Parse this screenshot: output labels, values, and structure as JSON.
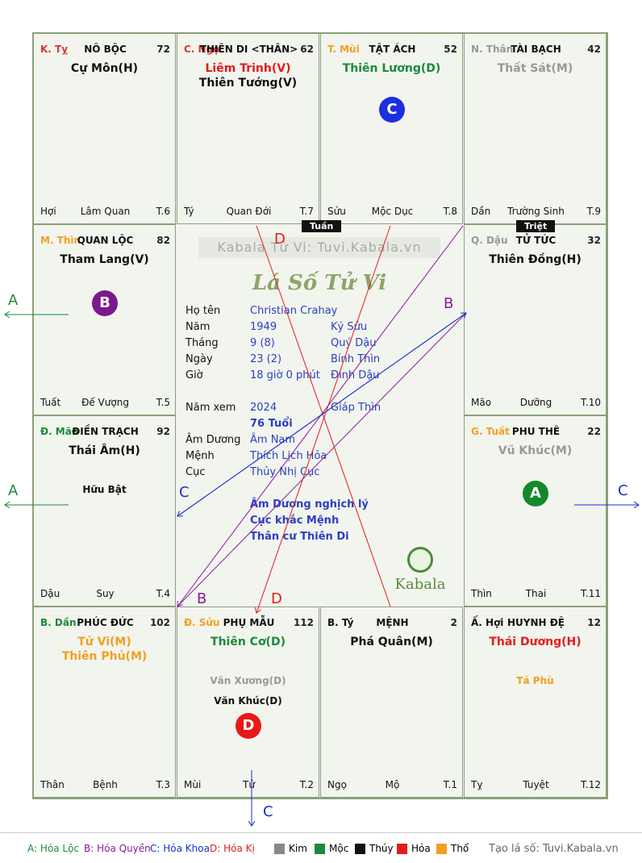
{
  "watermark": "Kabala Tử Vi: Tuvi.Kabala.vn",
  "logo_title": "Lá Số Tử Vi",
  "brand": "Kabala",
  "colors": {
    "kim": "#888888",
    "moc": "#1a8a3a",
    "thuy": "#111111",
    "hoa": "#e11d1d",
    "tho": "#f0a020",
    "blue": "#1a2fd0",
    "purple": "#8a1a9a"
  },
  "cells": [
    {
      "can": "K. Tỵ",
      "can_color": "#d33",
      "name": "NÔ BỘC",
      "num": "72",
      "stars": [
        {
          "t": "Cự Môn(H)",
          "c": "#111"
        }
      ],
      "minor": [],
      "foot": [
        "Hợi",
        "Lâm Quan",
        "T.6"
      ]
    },
    {
      "can": "C. Ngọ",
      "can_color": "#d33",
      "name": "THIÊN DI <THÂN>",
      "num": "62",
      "stars": [
        {
          "t": "Liêm Trinh(V)",
          "c": "#e11d1d"
        },
        {
          "t": "Thiên Tướng(V)",
          "c": "#111"
        }
      ],
      "minor": [],
      "foot": [
        "Tý",
        "Quan Đới",
        "T.7"
      ]
    },
    {
      "can": "T. Mùi",
      "can_color": "#f0a020",
      "name": "TẬT ÁCH",
      "num": "52",
      "stars": [
        {
          "t": "Thiên Lương(D)",
          "c": "#1a8a3a"
        }
      ],
      "minor": [],
      "foot": [
        "Sửu",
        "Mộc Dục",
        "T.8"
      ]
    },
    {
      "can": "N. Thân",
      "can_color": "#999",
      "name": "TÀI BẠCH",
      "num": "42",
      "stars": [
        {
          "t": "Thất Sát(M)",
          "c": "#999"
        }
      ],
      "minor": [],
      "foot": [
        "Dần",
        "Trường Sinh",
        "T.9"
      ]
    },
    {
      "can": "M. Thìn",
      "can_color": "#f0a020",
      "name": "QUAN LỘC",
      "num": "82",
      "stars": [
        {
          "t": "Tham Lang(V)",
          "c": "#111"
        }
      ],
      "minor": [],
      "foot": [
        "Tuất",
        "Đế Vượng",
        "T.5"
      ]
    },
    {
      "can": "Q. Dậu",
      "can_color": "#999",
      "name": "TỬ TỨC",
      "num": "32",
      "stars": [
        {
          "t": "Thiên Đồng(H)",
          "c": "#111"
        }
      ],
      "minor": [],
      "foot": [
        "Mão",
        "Dưỡng",
        "T.10"
      ]
    },
    {
      "can": "Đ. Mão",
      "can_color": "#1a8a3a",
      "name": "ĐIỀN TRẠCH",
      "num": "92",
      "stars": [
        {
          "t": "Thái Âm(H)",
          "c": "#111"
        }
      ],
      "minor": [
        {
          "t": "Hữu Bật",
          "c": "#111"
        }
      ],
      "foot": [
        "Dậu",
        "Suy",
        "T.4"
      ]
    },
    {
      "can": "G. Tuất",
      "can_color": "#f0a020",
      "name": "PHU THÊ",
      "num": "22",
      "stars": [
        {
          "t": "Vũ Khúc(M)",
          "c": "#999"
        }
      ],
      "minor": [],
      "foot": [
        "Thìn",
        "Thai",
        "T.11"
      ]
    },
    {
      "can": "B. Dần",
      "can_color": "#1a8a3a",
      "name": "PHÚC ĐỨC",
      "num": "102",
      "stars": [
        {
          "t": "Tử Vi(M)",
          "c": "#f0a020"
        },
        {
          "t": "Thiên Phủ(M)",
          "c": "#f0a020"
        }
      ],
      "minor": [],
      "foot": [
        "Thân",
        "Bệnh",
        "T.3"
      ]
    },
    {
      "can": "Đ. Sửu",
      "can_color": "#f0a020",
      "name": "PHỤ MẪU",
      "num": "112",
      "stars": [
        {
          "t": "Thiên Cơ(D)",
          "c": "#1a8a3a"
        }
      ],
      "minor": [
        {
          "t": "Văn Xương(D)",
          "c": "#999"
        },
        {
          "t": "Văn Khúc(D)",
          "c": "#111"
        }
      ],
      "foot": [
        "Mùi",
        "Tử",
        "T.2"
      ]
    },
    {
      "can": "B. Tý",
      "can_color": "#111",
      "name": "MỆNH",
      "num": "2",
      "stars": [
        {
          "t": "Phá Quân(M)",
          "c": "#111"
        }
      ],
      "minor": [],
      "foot": [
        "Ngọ",
        "Mộ",
        "T.1"
      ]
    },
    {
      "can": "Ấ. Hợi",
      "can_color": "#111",
      "name": "HUYNH ĐỆ",
      "num": "12",
      "stars": [
        {
          "t": "Thái Dương(H)",
          "c": "#e11d1d"
        }
      ],
      "minor": [
        {
          "t": "Tả Phù",
          "c": "#f0a020"
        }
      ],
      "foot": [
        "Tỵ",
        "Tuyệt",
        "T.12"
      ]
    }
  ],
  "info": {
    "rows": [
      {
        "k": "Họ tên",
        "v1": "Christian Crahay",
        "v2": ""
      },
      {
        "k": "Năm",
        "v1": "1949",
        "v2": "Kỷ Sửu"
      },
      {
        "k": "Tháng",
        "v1": "9  (8)",
        "v2": "Quý Dậu"
      },
      {
        "k": "Ngày",
        "v1": "23  (2)",
        "v2": "Bính Thìn"
      },
      {
        "k": "Giờ",
        "v1": "18 giờ 0 phút",
        "v2": "Đinh Dậu"
      },
      {
        "k": "Năm xem",
        "v1": "2024",
        "v2": "Giáp Thìn"
      },
      {
        "k": "",
        "v1": "76 Tuổi",
        "v2": ""
      },
      {
        "k": "Âm Dương",
        "v1": "Âm Nam",
        "v2": ""
      },
      {
        "k": "Mệnh",
        "v1": "Thích Lịch Hỏa",
        "v2": ""
      },
      {
        "k": "Cục",
        "v1": "Thủy Nhị Cục",
        "v2": ""
      }
    ],
    "notes": [
      "Âm Dương nghịch lý",
      "Cục khắc Mệnh",
      "Thân cư Thiên Di"
    ]
  },
  "tags": {
    "tuan": "Tuần",
    "triet": "Triệt"
  },
  "badges": {
    "a": "A",
    "b": "B",
    "c": "C",
    "d": "D"
  },
  "legend": {
    "a": "A: Hóa Lộc",
    "b": "B: Hóa Quyền",
    "c": "C: Hóa Khoa",
    "d": "D: Hóa Kị",
    "kim": "Kim",
    "moc": "Mộc",
    "thuy": "Thủy",
    "hoa": "Hỏa",
    "tho": "Thổ",
    "site": "Tạo lá số: Tuvi.Kabala.vn"
  }
}
